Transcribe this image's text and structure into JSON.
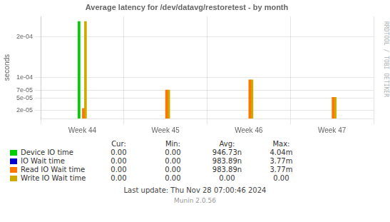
{
  "chart_data": {
    "type": "bar",
    "title": "Average latency for /dev/datavg/restoretest - by month",
    "ylabel": "seconds",
    "categories": [
      "Week 44",
      "Week 45",
      "Week 46",
      "Week 47"
    ],
    "series": [
      {
        "name": "Device IO time",
        "color": "#00cc00",
        "values": [
          0.000238,
          null,
          null,
          null
        ]
      },
      {
        "name": "IO Wait time",
        "color": "#0000cc",
        "values": [
          null,
          null,
          null,
          null
        ]
      },
      {
        "name": "Read IO Wait time",
        "color": "#ff7700",
        "values": [
          2.5e-05,
          7e-05,
          9.5e-05,
          5.2e-05
        ]
      },
      {
        "name": "Write IO Wait time",
        "color": "#ccaa00",
        "values": [
          0.000238,
          7e-05,
          9.5e-05,
          5.2e-05
        ]
      }
    ],
    "ylim": [
      0.0,
      0.00025
    ],
    "yticks": [
      {
        "value": 2e-05,
        "label": "2e-05"
      },
      {
        "value": 5e-05,
        "label": "5e-05"
      },
      {
        "value": 7e-05,
        "label": "7e-05"
      },
      {
        "value": 0.0001,
        "label": "1e-04"
      },
      {
        "value": 0.0002,
        "label": "2e-04"
      }
    ],
    "grid": true,
    "table": {
      "headers": [
        "Cur:",
        "Min:",
        "Avg:",
        "Max:"
      ],
      "rows": [
        [
          "0.00",
          "0.00",
          "946.73n",
          "4.04m"
        ],
        [
          "0.00",
          "0.00",
          "983.89n",
          "3.77m"
        ],
        [
          "0.00",
          "0.00",
          "983.89n",
          "3.77m"
        ],
        [
          "0.00",
          "0.00",
          "0.00",
          "0.00"
        ]
      ]
    },
    "annotations": [
      "RRDTOOL / TOBI OETIKER",
      "Last update: Thu Nov 28 07:00:46 2024",
      "Munin 2.0.56"
    ]
  }
}
